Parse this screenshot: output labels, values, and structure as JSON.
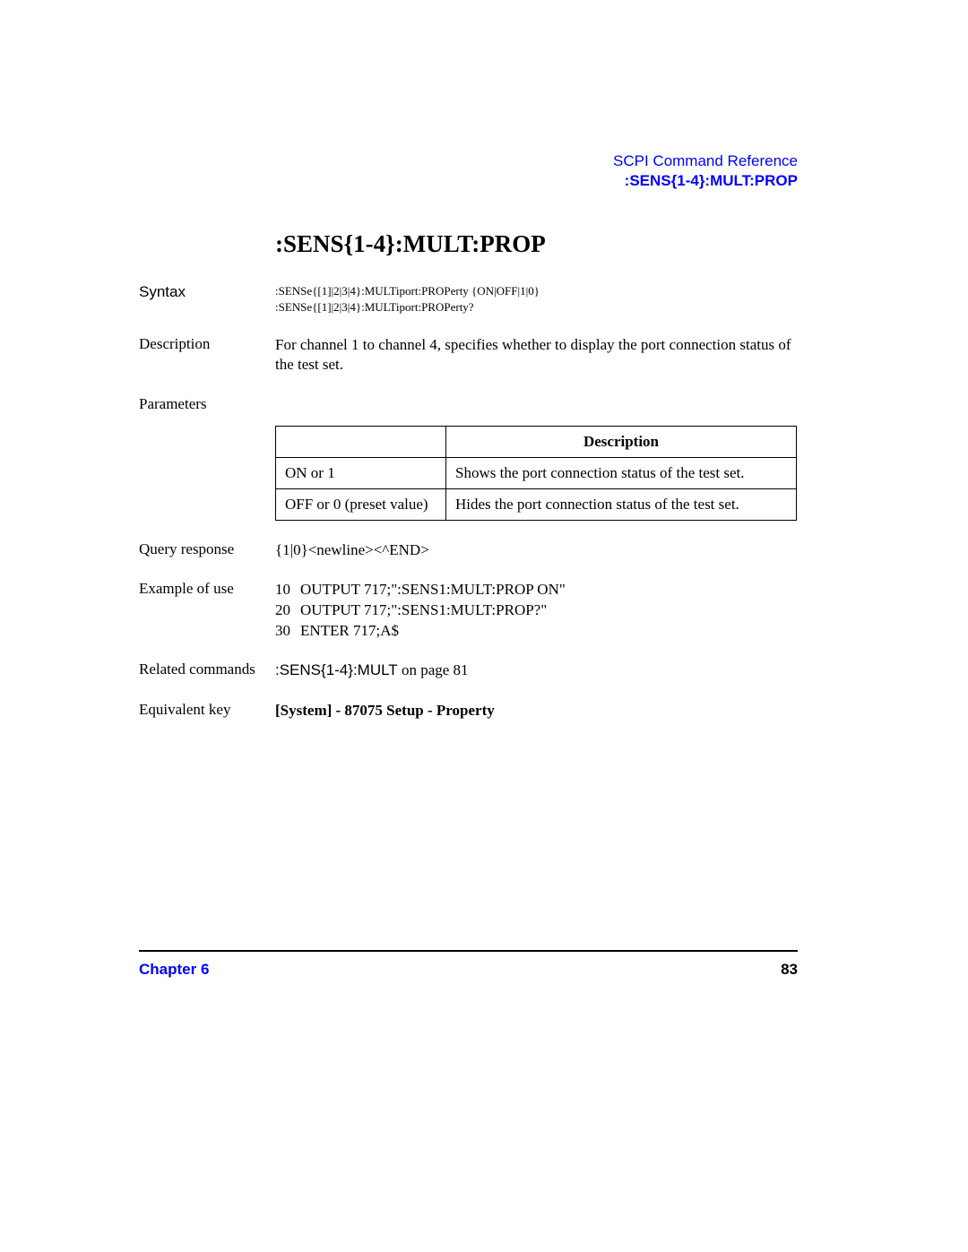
{
  "header": {
    "reference": "SCPI Command Reference",
    "subtitle": ":SENS{1-4}:MULT:PROP"
  },
  "heading": ":SENS{1-4}:MULT:PROP",
  "sections": {
    "syntax": {
      "label": "Syntax",
      "line1": ":SENSe{[1]|2|3|4}:MULTiport:PROPerty {ON|OFF|1|0}",
      "line2": ":SENSe{[1]|2|3|4}:MULTiport:PROPerty?"
    },
    "description": {
      "label": "Description",
      "text": "For channel 1 to channel 4, specifies whether to display the port connection status of the test set."
    },
    "parameters": {
      "label": "Parameters",
      "table": {
        "header_desc": "Description",
        "rows": [
          {
            "param": "ON or 1",
            "desc": "Shows the port connection status of the test set."
          },
          {
            "param": "OFF or 0 (preset value)",
            "desc": "Hides the port connection status of the test set."
          }
        ]
      }
    },
    "query_response": {
      "label": "Query response",
      "text": "{1|0}<newline><^END>"
    },
    "example": {
      "label": "Example of use",
      "lines": [
        {
          "num": "10",
          "code": "OUTPUT 717;\":SENS1:MULT:PROP ON\""
        },
        {
          "num": "20",
          "code": "OUTPUT 717;\":SENS1:MULT:PROP?\""
        },
        {
          "num": "30",
          "code": "ENTER 717;A$"
        }
      ]
    },
    "related": {
      "label": "Related commands",
      "cmd": ":SENS{1-4}:MULT",
      "suffix": " on page 81"
    },
    "equivalent": {
      "label": "Equivalent key",
      "text": "[System] - 87075 Setup - Property"
    }
  },
  "footer": {
    "chapter": "Chapter 6",
    "page": "83"
  },
  "colors": {
    "link": "#0000ff",
    "text": "#000000",
    "background": "#ffffff",
    "border": "#000000"
  }
}
